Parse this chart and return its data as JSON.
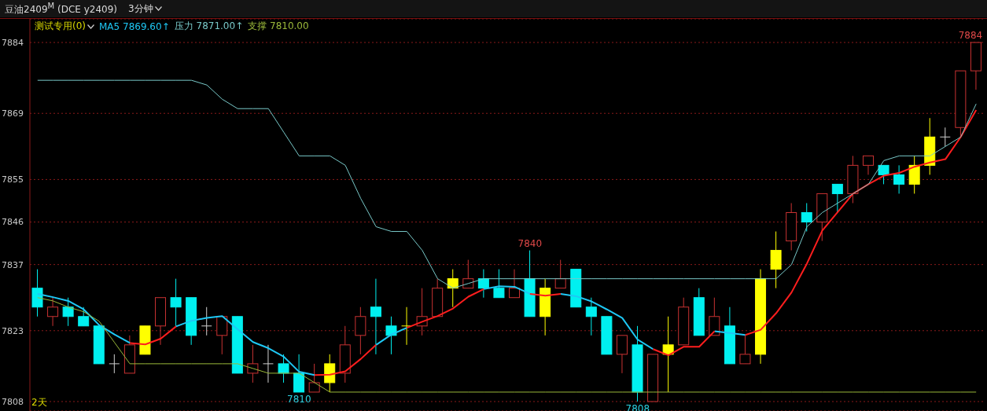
{
  "chart_data": {
    "type": "candlestick",
    "title": "豆油2409$^{M}$ (DCE y2409)",
    "subtitle": "3分钟",
    "legend_title": "测试专用(0)",
    "legend": "top left",
    "grid": "y",
    "tick_labels": "y",
    "categories": [
      null,
      null,
      null,
      null,
      null,
      null,
      null,
      null,
      null,
      null,
      null,
      null,
      null,
      null,
      null,
      null,
      null,
      null,
      null,
      null,
      null,
      null,
      null,
      null,
      null,
      null,
      null,
      null,
      null,
      null,
      null,
      null,
      null,
      null,
      null,
      null,
      null,
      null,
      null,
      null,
      null,
      null,
      null,
      null,
      null,
      null,
      null,
      null,
      null,
      null,
      null,
      null,
      null,
      null,
      null,
      null,
      null,
      null,
      null,
      null,
      null,
      null
    ],
    "ylim": [
      7806,
      7889
    ],
    "yticks": [
      7884,
      7869,
      7855,
      7846,
      7837,
      7823,
      7808
    ],
    "ohlc": [
      [
        7832,
        7836,
        7826,
        7828
      ],
      [
        7826,
        7830,
        7824,
        7828
      ],
      [
        7828,
        7830,
        7824,
        7826
      ],
      [
        7826,
        7828,
        7824,
        7824
      ],
      [
        7824,
        7824,
        7816,
        7816
      ],
      [
        7816,
        7818,
        7814,
        7816
      ],
      [
        7814,
        7822,
        7814,
        7820
      ],
      [
        7818,
        7824,
        7818,
        7824
      ],
      [
        7824,
        7830,
        7820,
        7830
      ],
      [
        7830,
        7834,
        7824,
        7828
      ],
      [
        7830,
        7830,
        7820,
        7822
      ],
      [
        7824,
        7828,
        7822,
        7824
      ],
      [
        7822,
        7826,
        7818,
        7826
      ],
      [
        7826,
        7826,
        7814,
        7814
      ],
      [
        7814,
        7820,
        7812,
        7816
      ],
      [
        7816,
        7820,
        7812,
        7816
      ],
      [
        7816,
        7818,
        7812,
        7814
      ],
      [
        7814,
        7818,
        7810,
        7810
      ],
      [
        7810,
        7816,
        7810,
        7812
      ],
      [
        7812,
        7818,
        7810,
        7816
      ],
      [
        7814,
        7824,
        7812,
        7820
      ],
      [
        7822,
        7828,
        7818,
        7826
      ],
      [
        7828,
        7834,
        7818,
        7826
      ],
      [
        7824,
        7826,
        7818,
        7822
      ],
      [
        7824,
        7828,
        7820,
        7824
      ],
      [
        7824,
        7832,
        7822,
        7826
      ],
      [
        7826,
        7834,
        7826,
        7832
      ],
      [
        7832,
        7836,
        7828,
        7834
      ],
      [
        7832,
        7838,
        7832,
        7834
      ],
      [
        7834,
        7836,
        7830,
        7832
      ],
      [
        7832,
        7836,
        7830,
        7830
      ],
      [
        7830,
        7836,
        7830,
        7832
      ],
      [
        7834,
        7840,
        7826,
        7826
      ],
      [
        7826,
        7834,
        7822,
        7832
      ],
      [
        7832,
        7838,
        7832,
        7834
      ],
      [
        7836,
        7836,
        7828,
        7828
      ],
      [
        7828,
        7830,
        7822,
        7826
      ],
      [
        7826,
        7826,
        7818,
        7818
      ],
      [
        7818,
        7822,
        7814,
        7822
      ],
      [
        7820,
        7824,
        7808,
        7810
      ],
      [
        7808,
        7818,
        7808,
        7818
      ],
      [
        7818,
        7826,
        7810,
        7820
      ],
      [
        7820,
        7830,
        7820,
        7828
      ],
      [
        7830,
        7832,
        7822,
        7822
      ],
      [
        7822,
        7830,
        7822,
        7826
      ],
      [
        7824,
        7828,
        7816,
        7816
      ],
      [
        7816,
        7822,
        7816,
        7818
      ],
      [
        7818,
        7836,
        7816,
        7834
      ],
      [
        7836,
        7844,
        7832,
        7840
      ],
      [
        7842,
        7850,
        7840,
        7848
      ],
      [
        7848,
        7850,
        7844,
        7846
      ],
      [
        7846,
        7852,
        7842,
        7852
      ],
      [
        7854,
        7854,
        7848,
        7852
      ],
      [
        7852,
        7860,
        7850,
        7858
      ],
      [
        7858,
        7860,
        7856,
        7860
      ],
      [
        7858,
        7858,
        7854,
        7856
      ],
      [
        7856,
        7858,
        7852,
        7854
      ],
      [
        7854,
        7860,
        7852,
        7858
      ],
      [
        7858,
        7868,
        7856,
        7864
      ],
      [
        7864,
        7866,
        7862,
        7864
      ],
      [
        7866,
        7878,
        7864,
        7878
      ],
      [
        7878,
        7884,
        7874,
        7884
      ]
    ],
    "colors": [
      "#00f0f0",
      "#c83232",
      "#00f0f0",
      "#00f0f0",
      "#00f0f0",
      "#d0d0d0",
      "#c83232",
      "#ffff00",
      "#c83232",
      "#00f0f0",
      "#00f0f0",
      "#d0d0d0",
      "#c83232",
      "#00f0f0",
      "#c83232",
      "#d0d0d0",
      "#00f0f0",
      "#00f0f0",
      "#c83232",
      "#ffff00",
      "#c83232",
      "#c83232",
      "#00f0f0",
      "#00f0f0",
      "#ffff00",
      "#c83232",
      "#c83232",
      "#ffff00",
      "#c83232",
      "#00f0f0",
      "#00f0f0",
      "#c83232",
      "#00f0f0",
      "#ffff00",
      "#c83232",
      "#00f0f0",
      "#00f0f0",
      "#00f0f0",
      "#c83232",
      "#00f0f0",
      "#c83232",
      "#ffff00",
      "#c83232",
      "#00f0f0",
      "#c83232",
      "#00f0f0",
      "#c83232",
      "#ffff00",
      "#ffff00",
      "#c83232",
      "#00f0f0",
      "#c83232",
      "#00f0f0",
      "#c83232",
      "#c83232",
      "#00f0f0",
      "#00f0f0",
      "#ffff00",
      "#ffff00",
      "#d0d0d0",
      "#c83232",
      "#c83232"
    ],
    "series": [
      {
        "type": "line",
        "name": "MA5 7869.60↑",
        "color": "#1ec8f5",
        "values": [
          7830.8,
          7830.1,
          7829.3,
          7827.5,
          7824.2,
          7822.2,
          7820.4,
          null,
          null,
          7823.9,
          7825.1,
          7825.7,
          7826.1,
          7823.3,
          7820.6,
          7819.3,
          7817.5,
          7814.3,
          7813.6,
          null,
          null,
          null,
          7820,
          7822.2,
          7823.6,
          null,
          null,
          null,
          null,
          7831.8,
          7832.4,
          7832.3,
          7830.8,
          null,
          7830.8,
          7830.3,
          7829.2,
          7827.5,
          7825.7,
          7821.1,
          7819.1,
          null,
          null,
          null,
          7822.9,
          7822.5,
          7822.1,
          null,
          null,
          null,
          null,
          null,
          null,
          null,
          null,
          null,
          null,
          null,
          null,
          null,
          null,
          null
        ]
      },
      {
        "type": "line",
        "color": "#ff1e1e",
        "values": [
          null,
          null,
          null,
          null,
          null,
          null,
          7820.4,
          7820.1,
          7821.3,
          7823.9,
          null,
          null,
          null,
          null,
          null,
          null,
          null,
          null,
          7813.6,
          7813.7,
          7814.4,
          7817,
          7820,
          null,
          7823.6,
          7824.9,
          7826.1,
          7827.7,
          7830.2,
          7831.8,
          null,
          null,
          7830.8,
          7830.4,
          7830.8,
          null,
          null,
          null,
          null,
          null,
          7819.1,
          7817.8,
          7819.6,
          7819.6,
          7822.9,
          null,
          7822.1,
          7823.2,
          7826.7,
          7831.1,
          7837.2,
          7844.2,
          7848.1,
          7852,
          7854,
          7855.8,
          7856.4,
          7857.7,
          7858.6,
          7859.3,
          7864,
          7869.7
        ]
      },
      {
        "type": "line",
        "name": "压力 7871.00↑",
        "color": "#78c8c8",
        "values": [
          7876,
          7876,
          7876,
          7876,
          7876,
          7876,
          7876,
          7876,
          7876,
          7876,
          7876,
          7875,
          7872,
          7870,
          7870,
          7870,
          7865,
          7860,
          7860,
          7860,
          7858,
          7851,
          7845,
          7844,
          7844,
          7840,
          7834,
          7832,
          7833,
          7834,
          7834,
          7834,
          7834,
          7834,
          7834,
          7834,
          7834,
          7834,
          7834,
          7834,
          7834,
          7834,
          7834,
          7834,
          7834,
          7834,
          7834,
          7834,
          7834,
          7837,
          7845,
          7848,
          7850,
          7852,
          7854,
          7859,
          7860,
          7860,
          7860,
          7862,
          7864,
          7871
        ]
      },
      {
        "type": "line",
        "name": "支撑 7810.00",
        "color": "#9ab83a",
        "values": [
          7830,
          7829.3,
          7828,
          7827,
          7825,
          7820.5,
          7816,
          7816,
          7816,
          7816,
          7816,
          7816,
          7816,
          7816,
          7815,
          7814,
          7814,
          7814,
          7812,
          7810,
          7810,
          7810,
          7810,
          7810,
          7810,
          7810,
          7810,
          7810,
          7810,
          7810,
          7810,
          7810,
          7810,
          7810,
          7810,
          7810,
          7810,
          7810,
          7810,
          7810,
          7810,
          7810,
          7810,
          7810,
          7810,
          7810,
          7810,
          7810,
          7810,
          7810,
          7810,
          7810,
          7810,
          7810,
          7810,
          7810,
          7810,
          7810,
          7810,
          7810,
          7810,
          7810
        ]
      }
    ],
    "annotations": [
      {
        "text": "7840",
        "y": 7840
      },
      {
        "text": "7810",
        "y": 7810
      },
      {
        "text": "7808",
        "y": 7808
      },
      {
        "text": "7884",
        "y": 7884
      },
      "2天"
    ]
  }
}
